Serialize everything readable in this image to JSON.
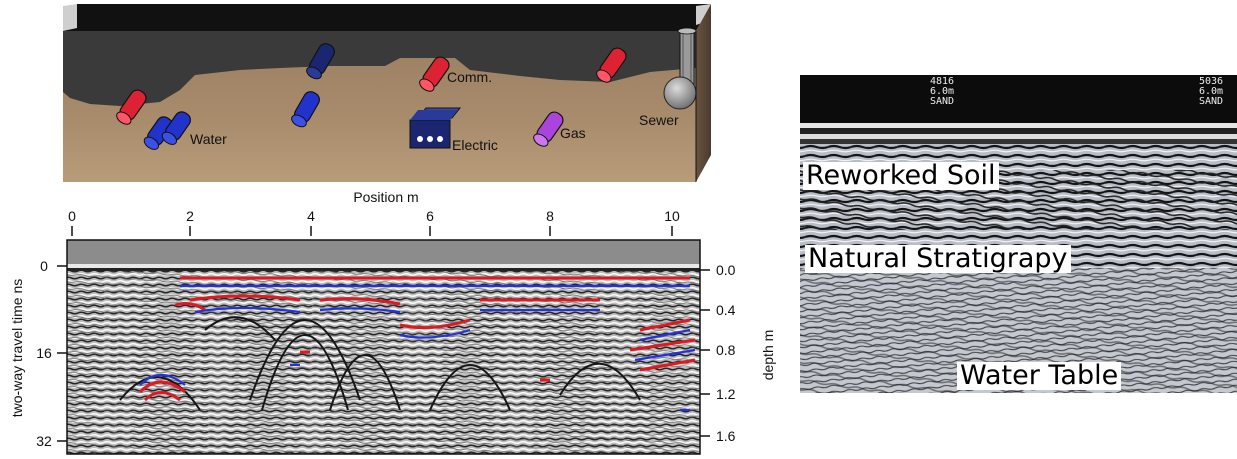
{
  "cross_section": {
    "utilities": [
      {
        "label": "Water",
        "color": "#2233cc"
      },
      {
        "label": "Comm.",
        "color": "#dd2233"
      },
      {
        "label": "Electric",
        "color": "#1a2670"
      },
      {
        "label": "Gas",
        "color": "#aa44dd"
      },
      {
        "label": "Sewer",
        "color": "#8a8a8a"
      }
    ]
  },
  "radargram": {
    "top_axis_title": "Position m",
    "x_ticks": [
      "0",
      "2",
      "4",
      "6",
      "8",
      "10"
    ],
    "left_axis_title": "two-way travel time ns",
    "y_ticks_left": [
      "0",
      "16",
      "32"
    ],
    "right_axis_title": "depth m",
    "y_ticks_right": [
      "0.0",
      "0.4",
      "0.8",
      "1.2",
      "1.6"
    ]
  },
  "profile": {
    "header_left": [
      "4816",
      "6.0m",
      "SAND"
    ],
    "header_right": [
      "5036",
      "6.0m",
      "SAND"
    ],
    "layers": [
      "Reworked Soil",
      "Natural Stratigrapy",
      "Water Table"
    ]
  }
}
